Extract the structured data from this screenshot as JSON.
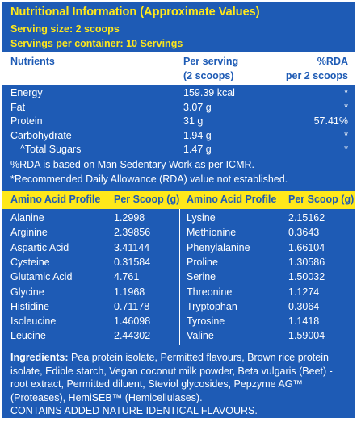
{
  "header": {
    "title": "Nutritional Information (Approximate Values)",
    "serving_size": "Serving size: 2 scoops",
    "servings_per_container": "Servings per container: 10 Servings"
  },
  "nutrients": {
    "columns": [
      [
        "Nutrients"
      ],
      [
        "Per serving",
        "(2 scoops)"
      ],
      [
        "%RDA",
        "per 2 scoops"
      ]
    ],
    "rows": [
      [
        "Energy",
        "159.39 kcal",
        "*"
      ],
      [
        "Fat",
        "3.07 g",
        "*"
      ],
      [
        "Protein",
        "31 g",
        "57.41%"
      ],
      [
        "Carbohydrate",
        "1.94 g",
        "*"
      ],
      [
        "^Total Sugars",
        "1.47 g",
        "*"
      ]
    ],
    "notes": [
      "%RDA is based on Man Sedentary Work as per ICMR.",
      "*Recommended Daily Allowance (RDA) value not established."
    ]
  },
  "amino": {
    "columns": [
      "Amino Acid Profile",
      "Per Scoop (g)",
      "Amino Acid Profile",
      "Per Scoop (g)"
    ],
    "left": [
      [
        "Alanine",
        "1.2998"
      ],
      [
        "Arginine",
        "2.39856"
      ],
      [
        "Aspartic Acid",
        "3.41144"
      ],
      [
        "Cysteine",
        "0.31584"
      ],
      [
        "Glutamic Acid",
        "4.761"
      ],
      [
        "Glycine",
        "1.1968"
      ],
      [
        "Histidine",
        "0.71178"
      ],
      [
        "Isoleucine",
        "1.46098"
      ],
      [
        "Leucine",
        "2.44302"
      ]
    ],
    "right": [
      [
        "Lysine",
        "2.15162"
      ],
      [
        "Methionine",
        "0.3643"
      ],
      [
        "Phenylalanine",
        "1.66104"
      ],
      [
        "Proline",
        "1.30586"
      ],
      [
        "Serine",
        "1.50032"
      ],
      [
        "Threonine",
        "1.1274"
      ],
      [
        "Tryptophan",
        "0.3064"
      ],
      [
        "Tyrosine",
        "1.1418"
      ],
      [
        "Valine",
        "1.59004"
      ]
    ]
  },
  "ingredients": {
    "label": "Ingredients:",
    "text": " Pea protein isolate, Permitted flavours, Brown rice protein isolate, Edible starch, Vegan coconut milk powder, Beta vulgaris (Beet) - root extract, Permitted diluent, Steviol glycosides, Pepzyme AG™  (Proteases), HemiSEB™ (Hemicellulases).",
    "contains": "CONTAINS ADDED NATURE IDENTICAL FLAVOURS."
  }
}
